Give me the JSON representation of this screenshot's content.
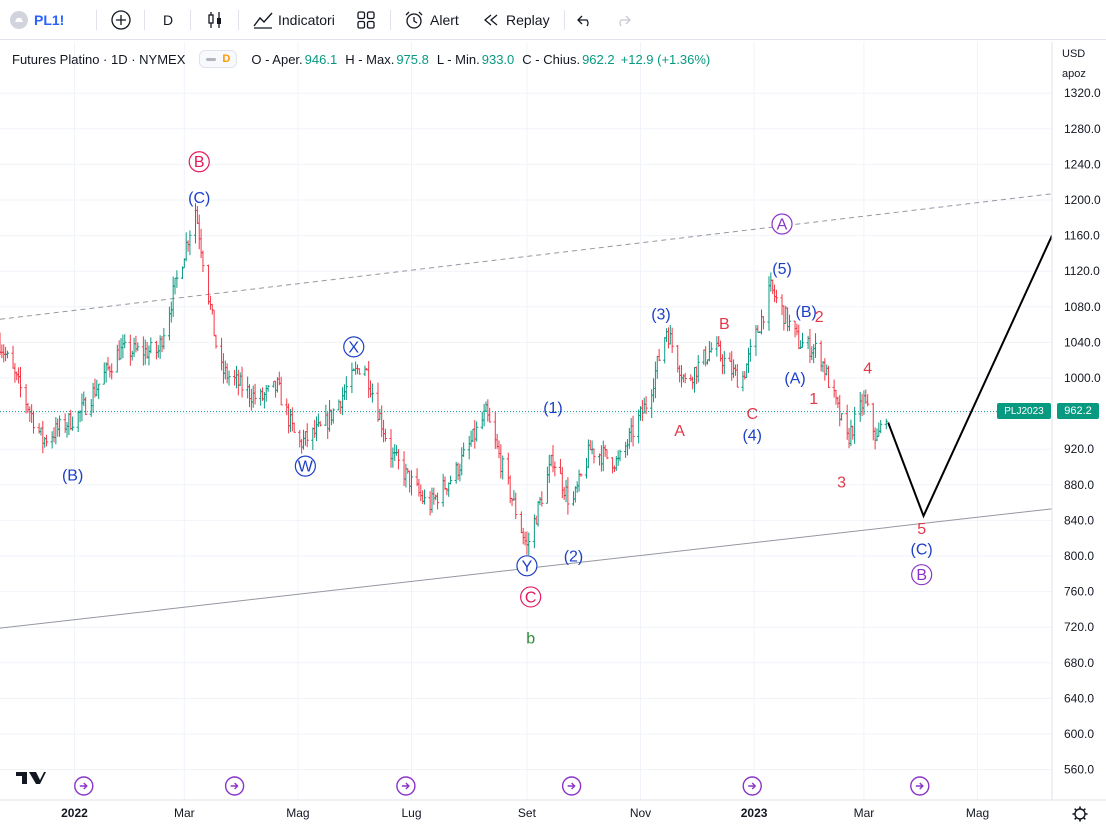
{
  "toolbar": {
    "symbol": "PL1!",
    "interval": "D",
    "indicators_label": "Indicatori",
    "alert_label": "Alert",
    "replay_label": "Replay"
  },
  "legend": {
    "title": "Futures Platino · 1D · NYMEX",
    "interval_badge": "D",
    "open_label": "O - Aper.",
    "open": "946.1",
    "high_label": "H - Max.",
    "high": "975.8",
    "low_label": "L - Min.",
    "low": "933.0",
    "close_label": "C - Chius.",
    "close": "962.2",
    "change": "+12.9 (+1.36%)"
  },
  "price_scale": {
    "currency": "USD",
    "mode": "apoz",
    "last_price": "962.2",
    "ticker_tag": "PLJ2023"
  },
  "colors": {
    "up": "#089981",
    "down": "#f23645",
    "wave_blue": "#1e40c8",
    "wave_red": "#e03a4a",
    "wave_pink": "#e6195b",
    "wave_purple": "#8a35c9",
    "wave_green": "#2e8b3a",
    "last_price": "#089981"
  },
  "chart_data": {
    "type": "candlestick",
    "title": "Futures Platino · 1D · NYMEX",
    "ylim": [
      540,
      1340
    ],
    "y_ticks": [
      560,
      600,
      640,
      680,
      720,
      760,
      800,
      840,
      880,
      920,
      960,
      1000,
      1040,
      1080,
      1120,
      1160,
      1200,
      1240,
      1280,
      1320
    ],
    "y_tick_labels": [
      "560.0",
      "600.0",
      "640.0",
      "680.0",
      "720.0",
      "760.0",
      "800.0",
      "840.0",
      "880.0",
      "920.0",
      "960.0",
      "1000.0",
      "1040.0",
      "1080.0",
      "1120.0",
      "1160.0",
      "1200.0",
      "1240.0",
      "1280.0",
      "1320.0"
    ],
    "x_axis_range": [
      "2021-11-22",
      "2023-06-10"
    ],
    "x_ticks": [
      {
        "date": "2022-01-01",
        "label": "2022"
      },
      {
        "date": "2022-03-01",
        "label": "Mar"
      },
      {
        "date": "2022-05-01",
        "label": "Mag"
      },
      {
        "date": "2022-07-01",
        "label": "Lug"
      },
      {
        "date": "2022-09-01",
        "label": "Set"
      },
      {
        "date": "2022-11-01",
        "label": "Nov"
      },
      {
        "date": "2023-01-01",
        "label": "2023"
      },
      {
        "date": "2023-03-01",
        "label": "Mar"
      },
      {
        "date": "2023-05-01",
        "label": "Mag"
      }
    ],
    "price_path": [
      {
        "date": "2021-11-22",
        "price": 1040
      },
      {
        "date": "2021-12-15",
        "price": 930
      },
      {
        "date": "2022-01-04",
        "price": 960
      },
      {
        "date": "2022-01-25",
        "price": 1030
      },
      {
        "date": "2022-02-15",
        "price": 1030
      },
      {
        "date": "2022-03-07",
        "price": 1190
      },
      {
        "date": "2022-03-20",
        "price": 1010
      },
      {
        "date": "2022-04-10",
        "price": 975
      },
      {
        "date": "2022-04-20",
        "price": 990
      },
      {
        "date": "2022-05-01",
        "price": 925
      },
      {
        "date": "2022-05-15",
        "price": 945
      },
      {
        "date": "2022-06-05",
        "price": 1020
      },
      {
        "date": "2022-06-20",
        "price": 915
      },
      {
        "date": "2022-07-10",
        "price": 855
      },
      {
        "date": "2022-07-25",
        "price": 895
      },
      {
        "date": "2022-08-10",
        "price": 960
      },
      {
        "date": "2022-09-01",
        "price": 810
      },
      {
        "date": "2022-09-15",
        "price": 910
      },
      {
        "date": "2022-09-25",
        "price": 855
      },
      {
        "date": "2022-10-05",
        "price": 920
      },
      {
        "date": "2022-10-20",
        "price": 905
      },
      {
        "date": "2022-11-05",
        "price": 975
      },
      {
        "date": "2022-11-15",
        "price": 1055
      },
      {
        "date": "2022-11-25",
        "price": 995
      },
      {
        "date": "2022-12-10",
        "price": 1035
      },
      {
        "date": "2022-12-25",
        "price": 995
      },
      {
        "date": "2023-01-10",
        "price": 1100
      },
      {
        "date": "2023-01-25",
        "price": 1040
      },
      {
        "date": "2023-02-05",
        "price": 1030
      },
      {
        "date": "2023-02-20",
        "price": 930
      },
      {
        "date": "2023-03-01",
        "price": 975
      },
      {
        "date": "2023-03-08",
        "price": 930
      },
      {
        "date": "2023-03-13",
        "price": 962
      }
    ],
    "last_price": 962.2,
    "projection": [
      {
        "date": "2023-03-14",
        "price": 950
      },
      {
        "date": "2023-04-02",
        "price": 845
      },
      {
        "date": "2023-06-10",
        "price": 1160
      }
    ],
    "channel_upper": [
      {
        "date": "2021-11-22",
        "price": 1066
      },
      {
        "date": "2023-06-10",
        "price": 1207
      }
    ],
    "channel_lower": [
      {
        "date": "2021-11-22",
        "price": 719
      },
      {
        "date": "2023-06-10",
        "price": 853
      }
    ],
    "annotations": [
      {
        "text": "B",
        "date": "2022-03-09",
        "price": 1243,
        "color": "wave_pink",
        "circled": true
      },
      {
        "text": "(C)",
        "date": "2022-03-09",
        "price": 1203,
        "color": "wave_blue",
        "circled": false
      },
      {
        "text": "(B)",
        "date": "2021-12-31",
        "price": 891,
        "color": "wave_blue",
        "circled": false
      },
      {
        "text": "X",
        "date": "2022-05-31",
        "price": 1035,
        "color": "wave_blue",
        "circled": true
      },
      {
        "text": "W",
        "date": "2022-05-05",
        "price": 901,
        "color": "wave_blue",
        "circled": true
      },
      {
        "text": "(1)",
        "date": "2022-09-15",
        "price": 967,
        "color": "wave_blue",
        "circled": false
      },
      {
        "text": "Y",
        "date": "2022-09-01",
        "price": 789,
        "color": "wave_blue",
        "circled": true
      },
      {
        "text": "(2)",
        "date": "2022-09-26",
        "price": 800,
        "color": "wave_blue",
        "circled": false
      },
      {
        "text": "C",
        "date": "2022-09-03",
        "price": 754,
        "color": "wave_pink",
        "circled": true
      },
      {
        "text": "b",
        "date": "2022-09-03",
        "price": 708,
        "color": "wave_green",
        "circled": false
      },
      {
        "text": "(3)",
        "date": "2022-11-12",
        "price": 1072,
        "color": "wave_blue",
        "circled": false
      },
      {
        "text": "A",
        "date": "2022-11-22",
        "price": 941,
        "color": "wave_red",
        "circled": false
      },
      {
        "text": "B",
        "date": "2022-12-16",
        "price": 1061,
        "color": "wave_red",
        "circled": false
      },
      {
        "text": "C",
        "date": "2022-12-31",
        "price": 960,
        "color": "wave_red",
        "circled": false
      },
      {
        "text": "(4)",
        "date": "2022-12-31",
        "price": 936,
        "color": "wave_blue",
        "circled": false
      },
      {
        "text": "A",
        "date": "2023-01-16",
        "price": 1173,
        "color": "wave_purple",
        "circled": true
      },
      {
        "text": "(5)",
        "date": "2023-01-16",
        "price": 1123,
        "color": "wave_blue",
        "circled": false
      },
      {
        "text": "(B)",
        "date": "2023-01-29",
        "price": 1075,
        "color": "wave_blue",
        "circled": false
      },
      {
        "text": "2",
        "date": "2023-02-05",
        "price": 1069,
        "color": "wave_red",
        "circled": false
      },
      {
        "text": "(A)",
        "date": "2023-01-23",
        "price": 1000,
        "color": "wave_blue",
        "circled": false
      },
      {
        "text": "1",
        "date": "2023-02-02",
        "price": 977,
        "color": "wave_red",
        "circled": false
      },
      {
        "text": "4",
        "date": "2023-03-03",
        "price": 1011,
        "color": "wave_red",
        "circled": false
      },
      {
        "text": "3",
        "date": "2023-02-17",
        "price": 883,
        "color": "wave_red",
        "circled": false
      },
      {
        "text": "5",
        "date": "2023-04-01",
        "price": 831,
        "color": "wave_red",
        "circled": false
      },
      {
        "text": "(C)",
        "date": "2023-04-01",
        "price": 808,
        "color": "wave_blue",
        "circled": false
      },
      {
        "text": "B",
        "date": "2023-04-01",
        "price": 779,
        "color": "wave_purple",
        "circled": true
      }
    ]
  }
}
